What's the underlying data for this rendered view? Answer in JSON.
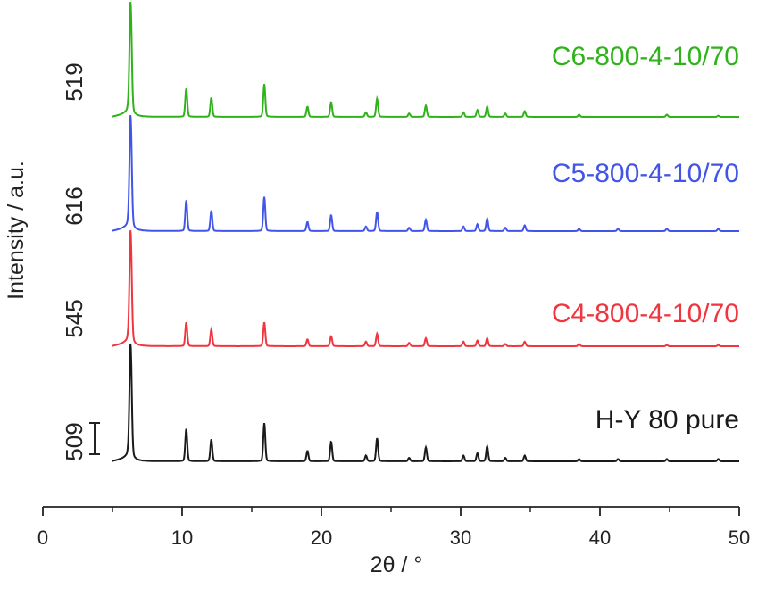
{
  "chart_data": {
    "type": "line",
    "title": "",
    "xlabel": "2θ / °",
    "ylabel": "Intensity / a.u.",
    "xlim": [
      0,
      50
    ],
    "xticks": [
      "0",
      "10",
      "20",
      "30",
      "40",
      "50"
    ],
    "y_ticks_shown": false,
    "grid": false,
    "legend": "none (series labels printed beside each trace)",
    "scale_bar": {
      "scale_label": "509"
    },
    "series": [
      {
        "name": "H-Y 80 pure",
        "intensity_label": "509",
        "color": "#1a1a1a",
        "peaks": [
          {
            "x": 6.3,
            "h": 1.0
          },
          {
            "x": 10.3,
            "h": 0.28
          },
          {
            "x": 12.1,
            "h": 0.19
          },
          {
            "x": 15.9,
            "h": 0.33
          },
          {
            "x": 19.0,
            "h": 0.09
          },
          {
            "x": 20.7,
            "h": 0.17
          },
          {
            "x": 23.2,
            "h": 0.05
          },
          {
            "x": 24.0,
            "h": 0.2
          },
          {
            "x": 26.3,
            "h": 0.03
          },
          {
            "x": 27.5,
            "h": 0.12
          },
          {
            "x": 30.2,
            "h": 0.05
          },
          {
            "x": 31.2,
            "h": 0.07
          },
          {
            "x": 31.9,
            "h": 0.13
          },
          {
            "x": 33.2,
            "h": 0.03
          },
          {
            "x": 34.6,
            "h": 0.05
          },
          {
            "x": 38.5,
            "h": 0.02
          },
          {
            "x": 41.3,
            "h": 0.02
          },
          {
            "x": 44.8,
            "h": 0.02
          },
          {
            "x": 48.5,
            "h": 0.02
          }
        ]
      },
      {
        "name": "C4-800-4-10/70",
        "intensity_label": "545",
        "color": "#f0353f",
        "peaks": [
          {
            "x": 6.3,
            "h": 1.0
          },
          {
            "x": 10.3,
            "h": 0.21
          },
          {
            "x": 12.1,
            "h": 0.15
          },
          {
            "x": 15.9,
            "h": 0.21
          },
          {
            "x": 19.0,
            "h": 0.06
          },
          {
            "x": 20.7,
            "h": 0.09
          },
          {
            "x": 23.2,
            "h": 0.04
          },
          {
            "x": 24.0,
            "h": 0.11
          },
          {
            "x": 26.3,
            "h": 0.03
          },
          {
            "x": 27.5,
            "h": 0.07
          },
          {
            "x": 30.2,
            "h": 0.04
          },
          {
            "x": 31.2,
            "h": 0.05
          },
          {
            "x": 31.9,
            "h": 0.07
          },
          {
            "x": 33.2,
            "h": 0.02
          },
          {
            "x": 34.6,
            "h": 0.04
          },
          {
            "x": 38.5,
            "h": 0.02
          },
          {
            "x": 44.8,
            "h": 0.01
          },
          {
            "x": 48.5,
            "h": 0.01
          }
        ]
      },
      {
        "name": "C5-800-4-10/70",
        "intensity_label": "616",
        "color": "#4255e8",
        "peaks": [
          {
            "x": 6.3,
            "h": 1.0
          },
          {
            "x": 10.3,
            "h": 0.27
          },
          {
            "x": 12.1,
            "h": 0.18
          },
          {
            "x": 15.9,
            "h": 0.3
          },
          {
            "x": 19.0,
            "h": 0.08
          },
          {
            "x": 20.7,
            "h": 0.14
          },
          {
            "x": 23.2,
            "h": 0.04
          },
          {
            "x": 24.0,
            "h": 0.17
          },
          {
            "x": 26.3,
            "h": 0.03
          },
          {
            "x": 27.5,
            "h": 0.1
          },
          {
            "x": 30.2,
            "h": 0.04
          },
          {
            "x": 31.2,
            "h": 0.06
          },
          {
            "x": 31.9,
            "h": 0.11
          },
          {
            "x": 33.2,
            "h": 0.03
          },
          {
            "x": 34.6,
            "h": 0.05
          },
          {
            "x": 38.5,
            "h": 0.02
          },
          {
            "x": 41.3,
            "h": 0.02
          },
          {
            "x": 44.8,
            "h": 0.02
          },
          {
            "x": 48.5,
            "h": 0.02
          }
        ]
      },
      {
        "name": "C6-800-4-10/70",
        "intensity_label": "519",
        "color": "#2fb21a",
        "peaks": [
          {
            "x": 6.3,
            "h": 1.0
          },
          {
            "x": 10.3,
            "h": 0.25
          },
          {
            "x": 12.1,
            "h": 0.17
          },
          {
            "x": 15.9,
            "h": 0.29
          },
          {
            "x": 19.0,
            "h": 0.09
          },
          {
            "x": 20.7,
            "h": 0.13
          },
          {
            "x": 23.2,
            "h": 0.04
          },
          {
            "x": 24.0,
            "h": 0.16
          },
          {
            "x": 26.3,
            "h": 0.03
          },
          {
            "x": 27.5,
            "h": 0.1
          },
          {
            "x": 30.2,
            "h": 0.04
          },
          {
            "x": 31.2,
            "h": 0.06
          },
          {
            "x": 31.9,
            "h": 0.09
          },
          {
            "x": 33.2,
            "h": 0.03
          },
          {
            "x": 34.6,
            "h": 0.05
          },
          {
            "x": 38.5,
            "h": 0.02
          },
          {
            "x": 44.8,
            "h": 0.02
          },
          {
            "x": 48.5,
            "h": 0.01
          }
        ]
      }
    ]
  }
}
